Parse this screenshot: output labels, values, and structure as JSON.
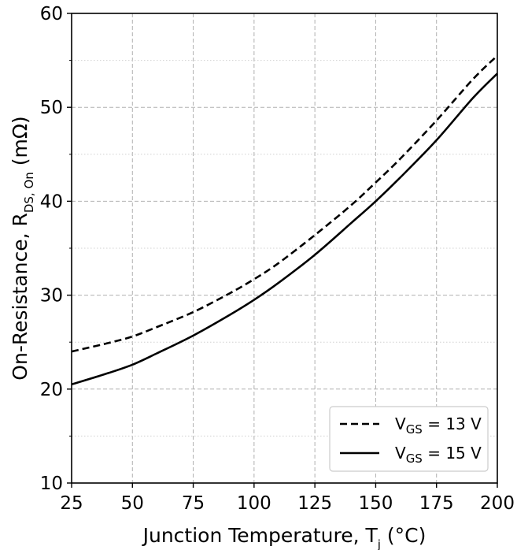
{
  "chart_data": {
    "type": "line",
    "title": "",
    "xlabel_parts": {
      "main": "Junction Temperature, T",
      "sub": "j",
      "suffix": " (°C)"
    },
    "ylabel_parts": {
      "main": "On-Resistance, R",
      "sub": "DS, On",
      "suffix": " (mΩ)"
    },
    "xlim": [
      25,
      200
    ],
    "ylim": [
      10,
      60
    ],
    "xticks": [
      25,
      50,
      75,
      100,
      125,
      150,
      175,
      200
    ],
    "yticks": [
      10,
      20,
      30,
      40,
      50,
      60
    ],
    "grid": true,
    "legend_position": "lower-right",
    "series": [
      {
        "name_parts": {
          "main": "V",
          "sub": "GS",
          "suffix": " = 13 V"
        },
        "style": "dashed",
        "x": [
          25,
          40,
          50,
          60,
          75,
          90,
          100,
          110,
          125,
          140,
          150,
          160,
          175,
          190,
          200
        ],
        "y": [
          24.0,
          24.9,
          25.6,
          26.6,
          28.2,
          30.2,
          31.7,
          33.4,
          36.4,
          39.6,
          42.0,
          44.5,
          48.6,
          53.0,
          55.5
        ]
      },
      {
        "name_parts": {
          "main": "V",
          "sub": "GS",
          "suffix": " = 15 V"
        },
        "style": "solid",
        "x": [
          25,
          40,
          50,
          60,
          75,
          90,
          100,
          110,
          125,
          140,
          150,
          160,
          175,
          190,
          200
        ],
        "y": [
          20.5,
          21.7,
          22.6,
          23.8,
          25.7,
          27.9,
          29.5,
          31.3,
          34.3,
          37.7,
          40.0,
          42.5,
          46.5,
          51.0,
          53.6
        ]
      }
    ]
  }
}
